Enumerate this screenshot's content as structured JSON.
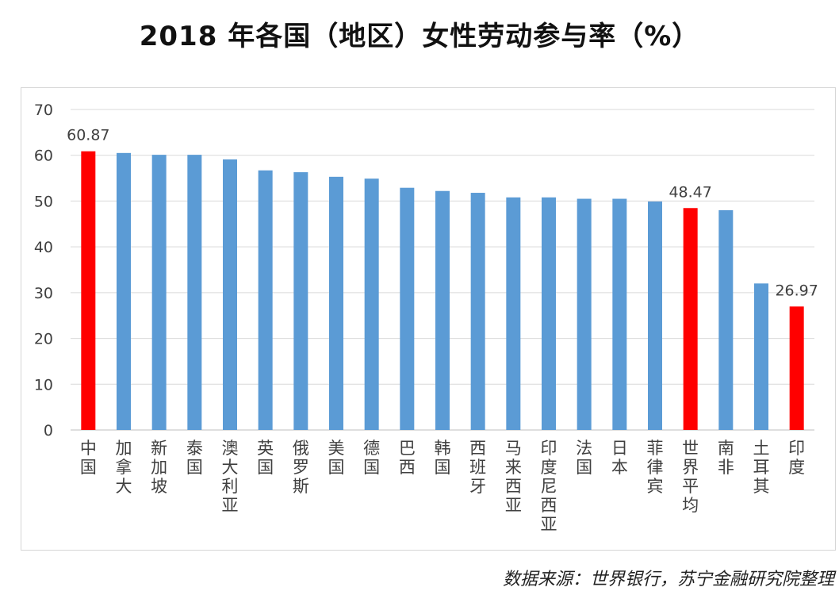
{
  "title": "2018 年各国（地区）女性劳动参与率（%）",
  "source_note": "数据来源：世界银行，苏宁金融研究院整理",
  "chart_data": {
    "type": "bar",
    "title": "2018 年各国（地区）女性劳动参与率（%）",
    "xlabel": "",
    "ylabel": "",
    "ylim": [
      0,
      70
    ],
    "yticks": [
      "0",
      "10",
      "20",
      "30",
      "40",
      "50",
      "60",
      "70"
    ],
    "grid": true,
    "legend": "none",
    "categories": [
      "中国",
      "加拿大",
      "新加坡",
      "泰国",
      "澳大利亚",
      "英国",
      "俄罗斯",
      "美国",
      "德国",
      "巴西",
      "韩国",
      "西班牙",
      "马来西亚",
      "印度尼西亚",
      "法国",
      "日本",
      "菲律宾",
      "世界平均",
      "南非",
      "土耳其",
      "印度"
    ],
    "values": [
      60.87,
      60.5,
      60.1,
      60.1,
      59.1,
      56.7,
      56.3,
      55.3,
      54.9,
      52.9,
      52.2,
      51.8,
      50.8,
      50.8,
      50.5,
      50.5,
      49.9,
      48.47,
      48.0,
      32.0,
      26.97
    ],
    "highlighted": [
      "中国",
      "世界平均",
      "印度"
    ],
    "data_labels": [
      {
        "category": "中国",
        "label": "60.87"
      },
      {
        "category": "世界平均",
        "label": "48.47"
      },
      {
        "category": "印度",
        "label": "26.97"
      }
    ],
    "colors": {
      "bar": "#5B9BD5",
      "highlight": "#FF0000",
      "grid": "#D9D9D9"
    }
  }
}
